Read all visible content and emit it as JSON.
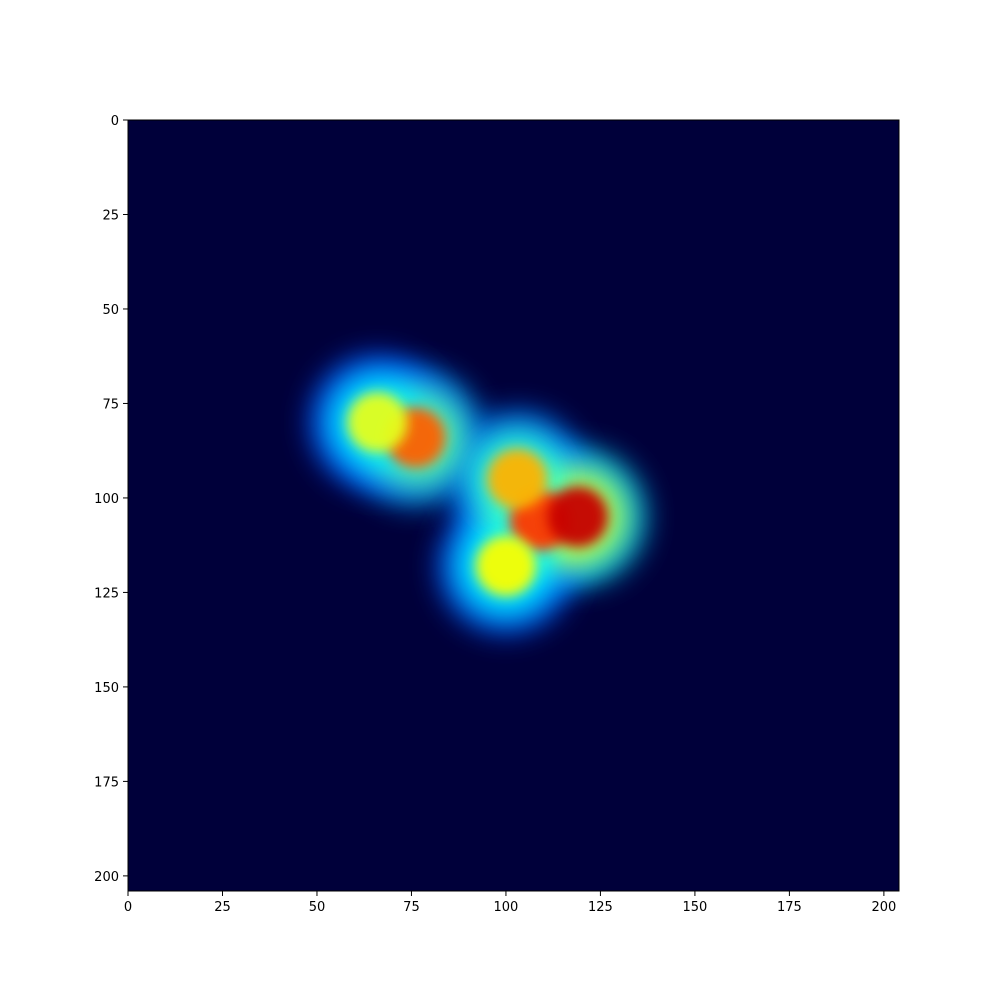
{
  "chart_data": {
    "type": "heatmap",
    "title": "",
    "xlabel": "",
    "ylabel": "",
    "xlim": [
      0,
      204
    ],
    "ylim": [
      204,
      0
    ],
    "y_axis_inverted": true,
    "colormap": "jet",
    "background_color": "#00003a",
    "xticks": [
      0,
      25,
      50,
      75,
      100,
      125,
      150,
      175,
      200
    ],
    "yticks": [
      0,
      25,
      50,
      75,
      100,
      125,
      150,
      175,
      200
    ],
    "xtick_labels": [
      "0",
      "25",
      "50",
      "75",
      "100",
      "125",
      "150",
      "175",
      "200"
    ],
    "ytick_labels": [
      "0",
      "25",
      "50",
      "75",
      "100",
      "125",
      "150",
      "175",
      "200"
    ],
    "hotspots": [
      {
        "x": 76,
        "y": 84,
        "value": 0.78
      },
      {
        "x": 66,
        "y": 80,
        "value": 0.6
      },
      {
        "x": 109,
        "y": 106,
        "value": 0.82
      },
      {
        "x": 119,
        "y": 105,
        "value": 0.93
      },
      {
        "x": 100,
        "y": 118,
        "value": 0.62
      },
      {
        "x": 103,
        "y": 95,
        "value": 0.7
      }
    ]
  }
}
